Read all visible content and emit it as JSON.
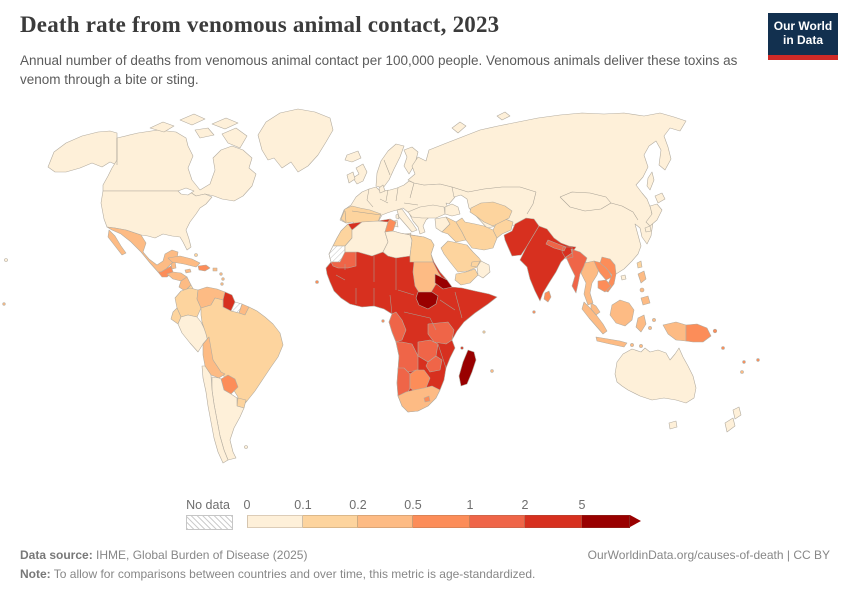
{
  "header": {
    "title": "Death rate from venomous animal contact, 2023",
    "subtitle": "Annual number of deaths from venomous animal contact per 100,000 people. Venomous animals deliver these toxins as venom through a bite or sting.",
    "logo": {
      "line1": "Our World",
      "line2": "in Data",
      "bg": "#12304f",
      "bar": "#cf2a27"
    }
  },
  "legend": {
    "no_data_label": "No data",
    "ticks": [
      "0",
      "0.1",
      "0.2",
      "0.5",
      "1",
      "2",
      "5"
    ],
    "band_keys": [
      "c0",
      "c1",
      "c2",
      "c3",
      "c4",
      "c5",
      "c6"
    ]
  },
  "footer": {
    "source_label": "Data source:",
    "source_text": " IHME, Global Burden of Disease (2025)",
    "link_text": "OurWorldinData.org/causes-of-death | CC BY",
    "note_label": "Note:",
    "note_text": " To allow for comparisons between countries and over time, this metric is age-standardized."
  },
  "chart_data": {
    "type": "heatmap",
    "variant": "choropleth-world-map",
    "title": "Death rate from venomous animal contact, 2023",
    "unit": "deaths per 100,000 people",
    "year": 2023,
    "legend_position": "bottom",
    "bins": [
      {
        "label": "0-0.1",
        "key": "c0",
        "color": "#FEF0D9"
      },
      {
        "label": "0.1-0.2",
        "key": "c1",
        "color": "#FDD49E"
      },
      {
        "label": "0.2-0.5",
        "key": "c2",
        "color": "#FDBB84"
      },
      {
        "label": "0.5-1",
        "key": "c3",
        "color": "#FC8D59"
      },
      {
        "label": "1-2",
        "key": "c4",
        "color": "#EF6548"
      },
      {
        "label": "2-5",
        "key": "c5",
        "color": "#D7301F"
      },
      {
        "label": ">5",
        "key": "c6",
        "color": "#990000"
      },
      {
        "label": "No data",
        "key": "nodata",
        "color": "hatched"
      }
    ],
    "country_bands": {
      "alaska": "c0",
      "canada": "c0",
      "usa": "c0",
      "greenland": "c0",
      "iceland": "c0",
      "arctic-island-1": "c0",
      "arctic-island-2": "c0",
      "arctic-island-3": "c0",
      "arctic-island-4": "c0",
      "arctic-island-5": "c0",
      "mexico": "c2",
      "baja-california": "c2",
      "guatemala": "c3",
      "belize": "c2",
      "honduras": "c2",
      "nicaragua": "c2",
      "costa-rica": "c1",
      "panama": "c3",
      "cuba": "c2",
      "jamaica": "c2",
      "hispaniola": "c3",
      "puerto-rico": "c2",
      "bahamas": "c1",
      "lesser-antilles-1": "c2",
      "lesser-antilles-2": "c2",
      "lesser-antilles-3": "c2",
      "colombia": "c1",
      "venezuela": "c2",
      "guyana": "c5",
      "suriname": "nodata",
      "french-guiana": "c2",
      "ecuador": "c1",
      "peru": "c0",
      "brazil": "c1",
      "bolivia": "c2",
      "paraguay": "c3",
      "chile": "c0",
      "argentina": "c0",
      "uruguay": "c1",
      "falkland-islands": "c0",
      "europe": "c0",
      "iberia": "c1",
      "uk": "c0",
      "ireland": "c0",
      "norway-sweden": "c0",
      "finland": "c0",
      "denmark": "c0",
      "italy": "c0",
      "sicily": "c0",
      "sardinia": "c0",
      "corsica": "c0",
      "russia-china-block": "c0",
      "sakhalin": "c0",
      "novaya-zemlya": "c0",
      "severnaya": "c0",
      "japan-hokkaido": "c0",
      "japan-honshu": "c0",
      "japan-kyushu": "c0",
      "turkey": "c0",
      "caucasus": "c0",
      "syria-jordan": "c0",
      "oman": "c0",
      "iraq": "c1",
      "iran": "c1",
      "saudi-arabia": "c1",
      "yemen": "c1",
      "uae": "c1",
      "afghanistan": "c1",
      "central-asia": "c1",
      "pakistan": "c5",
      "india": "c5",
      "nepal": "c4",
      "sri-lanka": "c3",
      "myanmar": "c4",
      "thailand": "c2",
      "laos": "c3",
      "vietnam": "c3",
      "cambodia": "c3",
      "malaysia": "c2",
      "sumatra": "c2",
      "java": "c2",
      "borneo": "c2",
      "sulawesi": "c2",
      "lesser-sunda-1": "c2",
      "lesser-sunda-2": "c2",
      "maluku-1": "c2",
      "maluku-2": "c2",
      "west-papua": "c2",
      "papua-new-guinea": "c3",
      "new-britain": "c3",
      "taiwan": "c1",
      "hainan": "c0",
      "philippines-luzon": "c2",
      "philippines-visayas": "c2",
      "philippines-mindanao": "c2",
      "australia": "c0",
      "tasmania": "c0",
      "nz-north": "c0",
      "nz-south": "c0",
      "solomon-islands": "c3",
      "vanuatu": "c3",
      "new-caledonia": "c2",
      "fiji": "c3",
      "hawaii": "c0",
      "polynesia": "c2",
      "africa-subsahara": "c5",
      "morocco": "c1",
      "western-sahara": "nodata",
      "algeria": "c0",
      "tunisia": "c3",
      "libya": "c0",
      "egypt": "c1",
      "mauritania": "c4",
      "sudan": "c2",
      "eritrea": "c6",
      "south-sudan": "c6",
      "gabon-congo": "c4",
      "tanzania": "c4",
      "angola": "c4",
      "zambia": "c4",
      "zimbabwe": "c4",
      "namibia": "c4",
      "botswana": "c3",
      "south-africa": "c2",
      "lesotho": "c3",
      "madagascar": "c6",
      "cape-verde": "c3",
      "sao-tome": "c3",
      "comoros": "c5",
      "mauritius": "c2",
      "seychelles": "c1",
      "maldives": "c3"
    }
  },
  "map": {
    "palette": {
      "c0": "#FEF0D9",
      "c1": "#FDD49E",
      "c2": "#FDBB84",
      "c3": "#FC8D59",
      "c4": "#EF6548",
      "c5": "#D7301F",
      "c6": "#990000"
    },
    "border_color": "#b3aca0",
    "ocean_color": "#ffffff"
  }
}
